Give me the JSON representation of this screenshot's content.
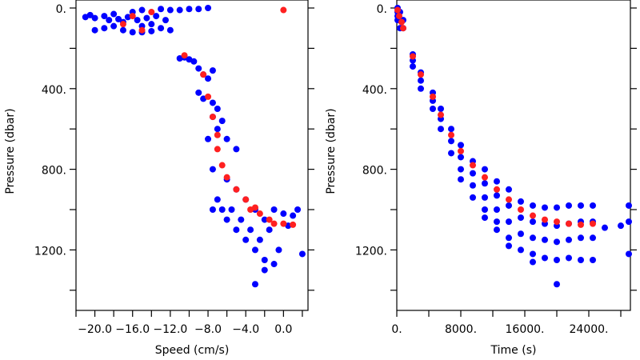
{
  "chart_data": [
    {
      "type": "scatter",
      "x_label": "Speed (cm/s)",
      "y_label": "Pressure (dbar)",
      "xlim": [
        -22,
        2.6
      ],
      "ylim": [
        0,
        1500
      ],
      "y_inverted": true,
      "xticks": [
        {
          "value": -20,
          "label": "−20.0"
        },
        {
          "value": -16,
          "label": "−16.0"
        },
        {
          "value": -12,
          "label": "−12.0"
        },
        {
          "value": -8,
          "label": "−8.0"
        },
        {
          "value": -4,
          "label": "−4.0"
        },
        {
          "value": 0,
          "label": "0.0"
        }
      ],
      "xticks_minor": [
        -22,
        -18,
        -14,
        -10,
        -6,
        -2,
        2
      ],
      "yticks": [
        {
          "value": 0,
          "label": "0."
        },
        {
          "value": 400,
          "label": "400."
        },
        {
          "value": 800,
          "label": "800."
        },
        {
          "value": 1200,
          "label": "1200."
        }
      ],
      "yticks_minor": [
        200,
        600,
        1000,
        1400
      ],
      "series": [
        {
          "color": "#0000ff",
          "x": [
            -21,
            -20.5,
            -20,
            -19,
            -18.5,
            -18,
            -17.5,
            -17,
            -16.5,
            -16,
            -15.5,
            -15,
            -14.5,
            -14,
            -13.5,
            -13,
            -12.5,
            -12,
            -18,
            -17,
            -16,
            -15,
            -14,
            -19,
            -20,
            -12,
            -11,
            -10,
            -9,
            -8,
            -13,
            -15,
            -11,
            -10.5,
            -10,
            -9.5,
            -9,
            -8.5,
            -8,
            -7.5,
            -9,
            -8.5,
            -7.5,
            -7,
            -7.5,
            -6.5,
            -7,
            -6,
            -5,
            -8,
            -7.5,
            -6,
            -5,
            -4,
            -3,
            -2,
            -1,
            0,
            1,
            1.5,
            -6,
            -5,
            -4,
            -3,
            -2,
            -1,
            -3,
            2,
            -7.5,
            -7,
            -6.5,
            -5.5,
            -4.5,
            -3.5,
            -2.5,
            -1.5,
            0.5,
            -0.5,
            -2
          ],
          "y": [
            45,
            35,
            50,
            40,
            60,
            30,
            55,
            70,
            45,
            20,
            60,
            90,
            50,
            80,
            40,
            100,
            60,
            110,
            90,
            110,
            120,
            120,
            115,
            100,
            110,
            10,
            10,
            5,
            5,
            0,
            5,
            10,
            250,
            245,
            255,
            265,
            300,
            330,
            350,
            310,
            420,
            450,
            470,
            500,
            540,
            560,
            600,
            650,
            700,
            650,
            800,
            850,
            900,
            950,
            1000,
            1050,
            1000,
            1020,
            1030,
            1000,
            1050,
            1100,
            1150,
            1200,
            1250,
            1270,
            1370,
            1220,
            1000,
            950,
            1000,
            1000,
            1050,
            1100,
            1150,
            1100,
            1080,
            1200,
            1300
          ]
        },
        {
          "color": "#ff2020",
          "x": [
            -16,
            -17,
            -15,
            -14,
            0,
            -10.5,
            -8.5,
            -8,
            -7.5,
            -7,
            -7,
            -6.5,
            -6,
            -5,
            -4,
            -3,
            -2.5,
            -1.5,
            -1,
            0,
            1,
            -3.5
          ],
          "y": [
            40,
            80,
            110,
            20,
            10,
            235,
            330,
            440,
            540,
            630,
            700,
            780,
            840,
            900,
            950,
            990,
            1020,
            1050,
            1070,
            1070,
            1075,
            1000
          ]
        }
      ]
    },
    {
      "type": "scatter",
      "x_label": "Time (s)",
      "y_label": "Pressure (dbar)",
      "xlim": [
        0,
        29200
      ],
      "ylim": [
        0,
        1500
      ],
      "y_inverted": true,
      "xticks": [
        {
          "value": 0,
          "label": "0."
        },
        {
          "value": 8000,
          "label": "8000."
        },
        {
          "value": 16000,
          "label": "16000."
        },
        {
          "value": 24000,
          "label": "24000."
        }
      ],
      "xticks_minor": [
        4000,
        12000,
        20000,
        28000
      ],
      "yticks": [
        {
          "value": 0,
          "label": "0."
        },
        {
          "value": 400,
          "label": "400."
        },
        {
          "value": 800,
          "label": "800."
        },
        {
          "value": 1200,
          "label": "1200."
        }
      ],
      "yticks_minor": [
        200,
        600,
        1000,
        1400
      ],
      "series": [
        {
          "color": "#0000ff",
          "x": [
            100,
            100,
            100,
            100,
            400,
            400,
            400,
            800,
            800,
            2000,
            2000,
            2000,
            3000,
            3000,
            3000,
            4500,
            4500,
            4500,
            5500,
            5500,
            5500,
            6800,
            6800,
            6800,
            8000,
            8000,
            8000,
            8000,
            9500,
            9500,
            9500,
            9500,
            11000,
            11000,
            11000,
            11000,
            11000,
            12500,
            12500,
            12500,
            12500,
            12500,
            14000,
            14000,
            14000,
            14000,
            14000,
            15500,
            15500,
            15500,
            15500,
            17000,
            17000,
            17000,
            17000,
            17000,
            18500,
            18500,
            18500,
            18500,
            20000,
            20000,
            20000,
            20000,
            20000,
            21500,
            21500,
            21500,
            21500,
            23000,
            23000,
            23000,
            23000,
            24500,
            24500,
            24500,
            24500,
            26000,
            28000,
            29000,
            29000,
            29000
          ],
          "y": [
            0,
            20,
            40,
            60,
            20,
            60,
            100,
            60,
            100,
            230,
            260,
            290,
            320,
            360,
            400,
            420,
            460,
            500,
            500,
            550,
            600,
            600,
            660,
            720,
            680,
            740,
            800,
            850,
            760,
            820,
            880,
            940,
            800,
            870,
            940,
            1000,
            1040,
            860,
            930,
            1000,
            1060,
            1100,
            900,
            980,
            1060,
            1140,
            1180,
            960,
            1040,
            1120,
            1200,
            980,
            1060,
            1140,
            1220,
            1260,
            990,
            1070,
            1150,
            1240,
            990,
            1080,
            1160,
            1250,
            1370,
            980,
            1070,
            1150,
            1240,
            980,
            1060,
            1140,
            1250,
            980,
            1060,
            1140,
            1250,
            1090,
            1080,
            980,
            1060,
            1220
          ]
        },
        {
          "color": "#ff2020",
          "x": [
            100,
            300,
            600,
            800,
            2000,
            3000,
            4500,
            5500,
            6800,
            8000,
            9500,
            11000,
            12500,
            14000,
            15500,
            17000,
            18500,
            20000,
            21500,
            23000,
            24500
          ],
          "y": [
            10,
            40,
            70,
            100,
            240,
            330,
            440,
            530,
            630,
            710,
            780,
            840,
            900,
            950,
            1000,
            1030,
            1050,
            1060,
            1070,
            1075,
            1070
          ]
        }
      ]
    }
  ]
}
